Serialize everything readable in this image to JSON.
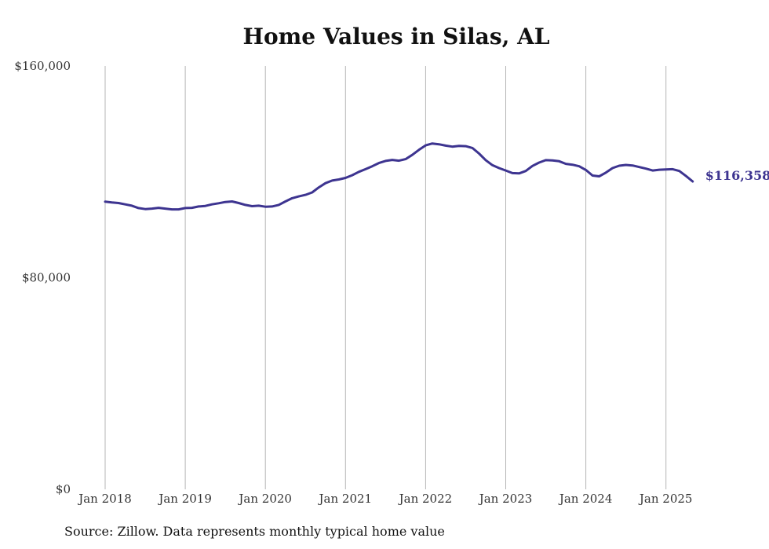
{
  "chart_data": {
    "type": "line",
    "title": "Home Values in Silas, AL",
    "xlabel": "",
    "ylabel": "",
    "x_tick_labels": [
      "Jan 2018",
      "Jan 2019",
      "Jan 2020",
      "Jan 2021",
      "Jan 2022",
      "Jan 2023",
      "Jan 2024",
      "Jan 2025"
    ],
    "y_tick_labels": [
      "$0",
      "$80,000",
      "$160,000"
    ],
    "y_ticks": [
      0,
      80000,
      160000
    ],
    "ylim": [
      0,
      160000
    ],
    "xlim": [
      "2018-01",
      "2025-04"
    ],
    "grid": "vertical",
    "legend": "none",
    "line_color": "#3d3490",
    "series": [
      {
        "points": [
          [
            "2018-01",
            108700
          ],
          [
            "2018-02",
            108400
          ],
          [
            "2018-03",
            108200
          ],
          [
            "2018-04",
            107700
          ],
          [
            "2018-05",
            107200
          ],
          [
            "2018-06",
            106300
          ],
          [
            "2018-07",
            105900
          ],
          [
            "2018-08",
            106100
          ],
          [
            "2018-09",
            106400
          ],
          [
            "2018-10",
            106100
          ],
          [
            "2018-11",
            105800
          ],
          [
            "2018-12",
            105800
          ],
          [
            "2019-01",
            106300
          ],
          [
            "2019-02",
            106400
          ],
          [
            "2019-03",
            106900
          ],
          [
            "2019-04",
            107100
          ],
          [
            "2019-05",
            107700
          ],
          [
            "2019-06",
            108100
          ],
          [
            "2019-07",
            108600
          ],
          [
            "2019-08",
            108800
          ],
          [
            "2019-09",
            108200
          ],
          [
            "2019-10",
            107500
          ],
          [
            "2019-11",
            107000
          ],
          [
            "2019-12",
            107200
          ],
          [
            "2020-01",
            106800
          ],
          [
            "2020-02",
            106900
          ],
          [
            "2020-03",
            107500
          ],
          [
            "2020-04",
            108800
          ],
          [
            "2020-05",
            110000
          ],
          [
            "2020-06",
            110700
          ],
          [
            "2020-07",
            111300
          ],
          [
            "2020-08",
            112200
          ],
          [
            "2020-09",
            114100
          ],
          [
            "2020-10",
            115700
          ],
          [
            "2020-11",
            116700
          ],
          [
            "2020-12",
            117100
          ],
          [
            "2021-01",
            117700
          ],
          [
            "2021-02",
            118700
          ],
          [
            "2021-03",
            120000
          ],
          [
            "2021-04",
            121000
          ],
          [
            "2021-05",
            122100
          ],
          [
            "2021-06",
            123300
          ],
          [
            "2021-07",
            124100
          ],
          [
            "2021-08",
            124500
          ],
          [
            "2021-09",
            124200
          ],
          [
            "2021-10",
            124800
          ],
          [
            "2021-11",
            126400
          ],
          [
            "2021-12",
            128300
          ],
          [
            "2022-01",
            130000
          ],
          [
            "2022-02",
            130700
          ],
          [
            "2022-03",
            130400
          ],
          [
            "2022-04",
            129900
          ],
          [
            "2022-05",
            129500
          ],
          [
            "2022-06",
            129800
          ],
          [
            "2022-07",
            129700
          ],
          [
            "2022-08",
            129000
          ],
          [
            "2022-09",
            126900
          ],
          [
            "2022-10",
            124400
          ],
          [
            "2022-11",
            122500
          ],
          [
            "2022-12",
            121400
          ],
          [
            "2023-01",
            120500
          ],
          [
            "2023-02",
            119500
          ],
          [
            "2023-03",
            119400
          ],
          [
            "2023-04",
            120300
          ],
          [
            "2023-05",
            122200
          ],
          [
            "2023-06",
            123500
          ],
          [
            "2023-07",
            124400
          ],
          [
            "2023-08",
            124300
          ],
          [
            "2023-09",
            124000
          ],
          [
            "2023-10",
            123000
          ],
          [
            "2023-11",
            122700
          ],
          [
            "2023-12",
            122100
          ],
          [
            "2024-01",
            120700
          ],
          [
            "2024-02",
            118600
          ],
          [
            "2024-03",
            118300
          ],
          [
            "2024-04",
            119700
          ],
          [
            "2024-05",
            121400
          ],
          [
            "2024-06",
            122300
          ],
          [
            "2024-07",
            122600
          ],
          [
            "2024-08",
            122400
          ],
          [
            "2024-09",
            121800
          ],
          [
            "2024-10",
            121200
          ],
          [
            "2024-11",
            120500
          ],
          [
            "2024-12",
            120800
          ],
          [
            "2025-01",
            120900
          ],
          [
            "2025-02",
            121000
          ],
          [
            "2025-03",
            120300
          ],
          [
            "2025-04",
            118400
          ],
          [
            "2025-05",
            116358
          ]
        ]
      }
    ],
    "end_label": "$116,358",
    "source_note": "Source: Zillow. Data represents monthly typical home value"
  }
}
